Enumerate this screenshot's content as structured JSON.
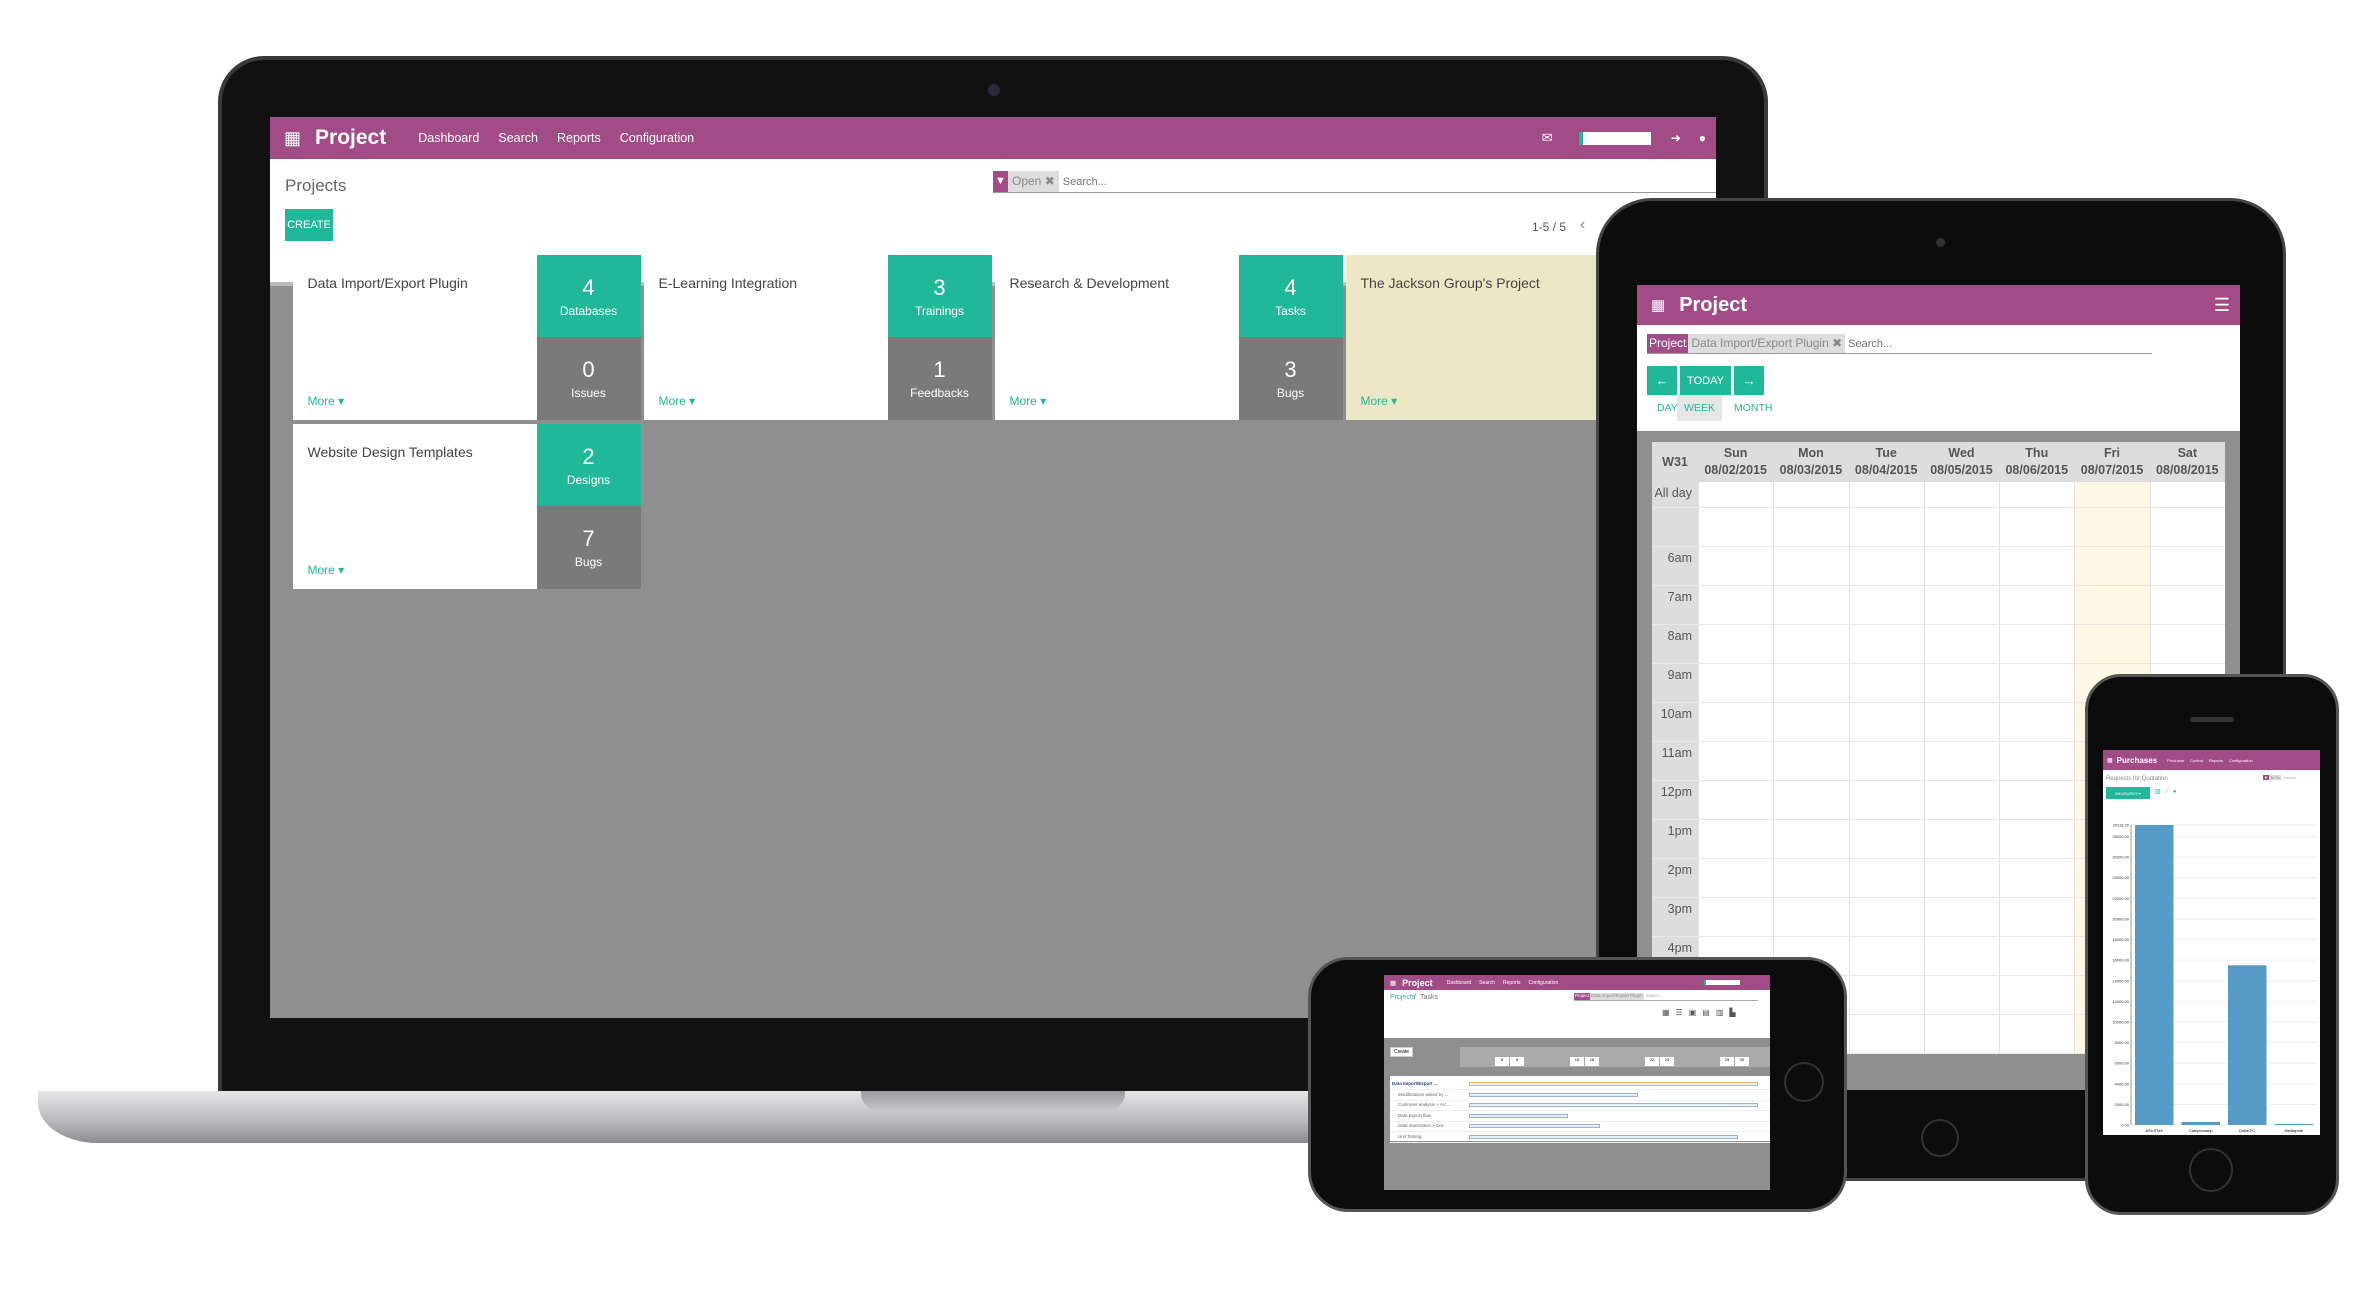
{
  "laptop": {
    "app_title": "Project",
    "menu": [
      "Dashboard",
      "Search",
      "Reports",
      "Configuration"
    ],
    "breadcrumb": "Projects",
    "filter_facet": "Open",
    "search_placeholder": "Search...",
    "create_label": "CREATE",
    "pager": "1-5 / 5",
    "more_label": "More",
    "projects": [
      {
        "name": "Data Import/Export Plugin",
        "top": {
          "count": "4",
          "label": "Databases"
        },
        "bottom": {
          "count": "0",
          "label": "Issues"
        }
      },
      {
        "name": "E-Learning Integration",
        "top": {
          "count": "3",
          "label": "Trainings"
        },
        "bottom": {
          "count": "1",
          "label": "Feedbacks"
        }
      },
      {
        "name": "Research & Development",
        "top": {
          "count": "4",
          "label": "Tasks"
        },
        "bottom": {
          "count": "3",
          "label": "Bugs"
        }
      },
      {
        "name": "The Jackson Group's Project"
      },
      {
        "name": "Website Design Templates",
        "top": {
          "count": "2",
          "label": "Designs"
        },
        "bottom": {
          "count": "7",
          "label": "Bugs"
        }
      }
    ],
    "colors": {
      "brand": "#a24c87",
      "accent": "#21b799",
      "highlight_card": "#ece7c4"
    }
  },
  "tablet": {
    "app_title": "Project",
    "facet_label": "Project",
    "facet_value": "Data Import/Export Plugin",
    "search_placeholder": "Search...",
    "prev": "←",
    "today": "TODAY",
    "next": "→",
    "views": [
      "DAY",
      "WEEK",
      "MONTH"
    ],
    "active_view": "WEEK",
    "week": "W31",
    "days": [
      {
        "d": "Sun",
        "date": "08/02/2015"
      },
      {
        "d": "Mon",
        "date": "08/03/2015"
      },
      {
        "d": "Tue",
        "date": "08/04/2015"
      },
      {
        "d": "Wed",
        "date": "08/05/2015"
      },
      {
        "d": "Thu",
        "date": "08/06/2015"
      },
      {
        "d": "Fri",
        "date": "08/07/2015"
      },
      {
        "d": "Sat",
        "date": "08/08/2015"
      }
    ],
    "today_index": 5,
    "rows": [
      "All day",
      "",
      "6am",
      "7am",
      "8am",
      "9am",
      "10am",
      "11am",
      "12pm",
      "1pm",
      "2pm",
      "3pm",
      "4pm",
      "",
      ""
    ]
  },
  "phone_landscape": {
    "app_title": "Project",
    "menu": [
      "Dashboard",
      "Search",
      "Reports",
      "Configuration"
    ],
    "breadcrumb_root": "Projects",
    "breadcrumb_sep": "/",
    "breadcrumb_current": "Tasks",
    "facet_label": "Project",
    "facet_value": "Data Import/Export Plugin",
    "search_placeholder": "Search...",
    "create_label": "Create",
    "day_labels": [
      "8",
      "9",
      "15",
      "16",
      "22",
      "23",
      "29",
      "30"
    ],
    "tasks": [
      {
        "name": "Data Import/Export ...",
        "span": [
          0.01,
          1.0
        ]
      },
      {
        "name": "Modifications asked by ...",
        "span": [
          0.01,
          0.59
        ]
      },
      {
        "name": "Customer analysis + Arc...",
        "span": [
          0.01,
          1.0
        ]
      },
      {
        "name": "Data Export flow",
        "span": [
          0.01,
          0.35
        ]
      },
      {
        "name": "Data importation + Doc",
        "span": [
          0.01,
          0.46
        ]
      },
      {
        "name": "Unit Testing",
        "span": [
          0.01,
          0.93
        ]
      }
    ]
  },
  "phone_portrait": {
    "app_title": "Purchases",
    "menu": [
      "Purchase",
      "Control",
      "Reports",
      "Configuration"
    ],
    "breadcrumb": "Requests for Quotation",
    "facet_value": "To Do",
    "search_placeholder": "Search...",
    "measures_label": "MEASURES ▾",
    "chart_data": {
      "type": "bar",
      "categories": [
        "ASUSTeK",
        "Camptocamp",
        "Delta PC",
        "Mediapole"
      ],
      "values": [
        29118.3,
        300,
        15500,
        100
      ],
      "ylim": [
        0,
        29118.3
      ],
      "yticks": [
        "0.00",
        "2000.00",
        "4000.00",
        "6000.00",
        "8000.00",
        "10000.00",
        "12000.00",
        "14000.00",
        "16000.00",
        "18000.00",
        "20000.00",
        "22000.00",
        "24000.00",
        "26000.00",
        "28000.00",
        "29118.30"
      ],
      "color": "#5799c7",
      "grid": true
    }
  }
}
